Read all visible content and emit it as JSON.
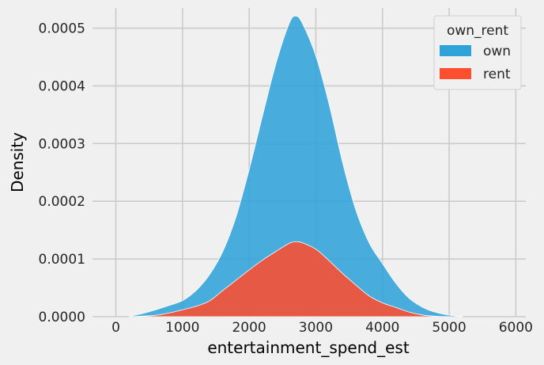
{
  "chart_data": {
    "type": "area",
    "stacked": true,
    "xlabel": "entertainment_spend_est",
    "ylabel": "Density",
    "xlim": [
      -350,
      6150
    ],
    "ylim": [
      0,
      0.000535
    ],
    "x_ticks": [
      0,
      1000,
      2000,
      3000,
      4000,
      5000,
      6000
    ],
    "x_tick_labels": [
      "0",
      "1000",
      "2000",
      "3000",
      "4000",
      "5000",
      "6000"
    ],
    "y_ticks": [
      0,
      0.0001,
      0.0002,
      0.0003,
      0.0004,
      0.0005
    ],
    "y_tick_labels": [
      "0.0000",
      "0.0001",
      "0.0002",
      "0.0003",
      "0.0004",
      "0.0005"
    ],
    "grid": true,
    "legend": {
      "title": "own_rent",
      "placement": "top-right"
    },
    "x": [
      200,
      400,
      600,
      800,
      1000,
      1200,
      1400,
      1600,
      1800,
      2000,
      2200,
      2400,
      2600,
      2700,
      2800,
      3000,
      3200,
      3400,
      3600,
      3800,
      4000,
      4200,
      4400,
      4600,
      4800,
      5000,
      5200
    ],
    "series": [
      {
        "name": "own",
        "color": "#30a2da",
        "stacked_top": [
          5e-07,
          5.5e-06,
          1.2e-05,
          1.95e-05,
          2.8e-05,
          4.5e-05,
          7.2e-05,
          0.000112,
          0.000172,
          0.000255,
          0.000348,
          0.000438,
          0.000508,
          0.000521,
          0.000508,
          0.000452,
          0.000368,
          0.000268,
          0.000185,
          0.000128,
          9.2e-05,
          5.8e-05,
          3.2e-05,
          1.65e-05,
          7.5e-06,
          2.8e-06,
          5e-07
        ]
      },
      {
        "name": "rent",
        "color": "#fc4f30",
        "values": [
          0,
          1e-06,
          2.5e-06,
          6.5e-06,
          1.2e-05,
          1.8e-05,
          2.7e-05,
          4.5e-05,
          6.3e-05,
          8.1e-05,
          9.8e-05,
          0.000113,
          0.000127,
          0.00013,
          0.000128,
          0.000117,
          9.7e-05,
          7.5e-05,
          5.5e-05,
          3.6e-05,
          2.4e-05,
          1.6e-05,
          8e-06,
          3e-06,
          8e-07,
          2e-07,
          0
        ]
      }
    ]
  }
}
